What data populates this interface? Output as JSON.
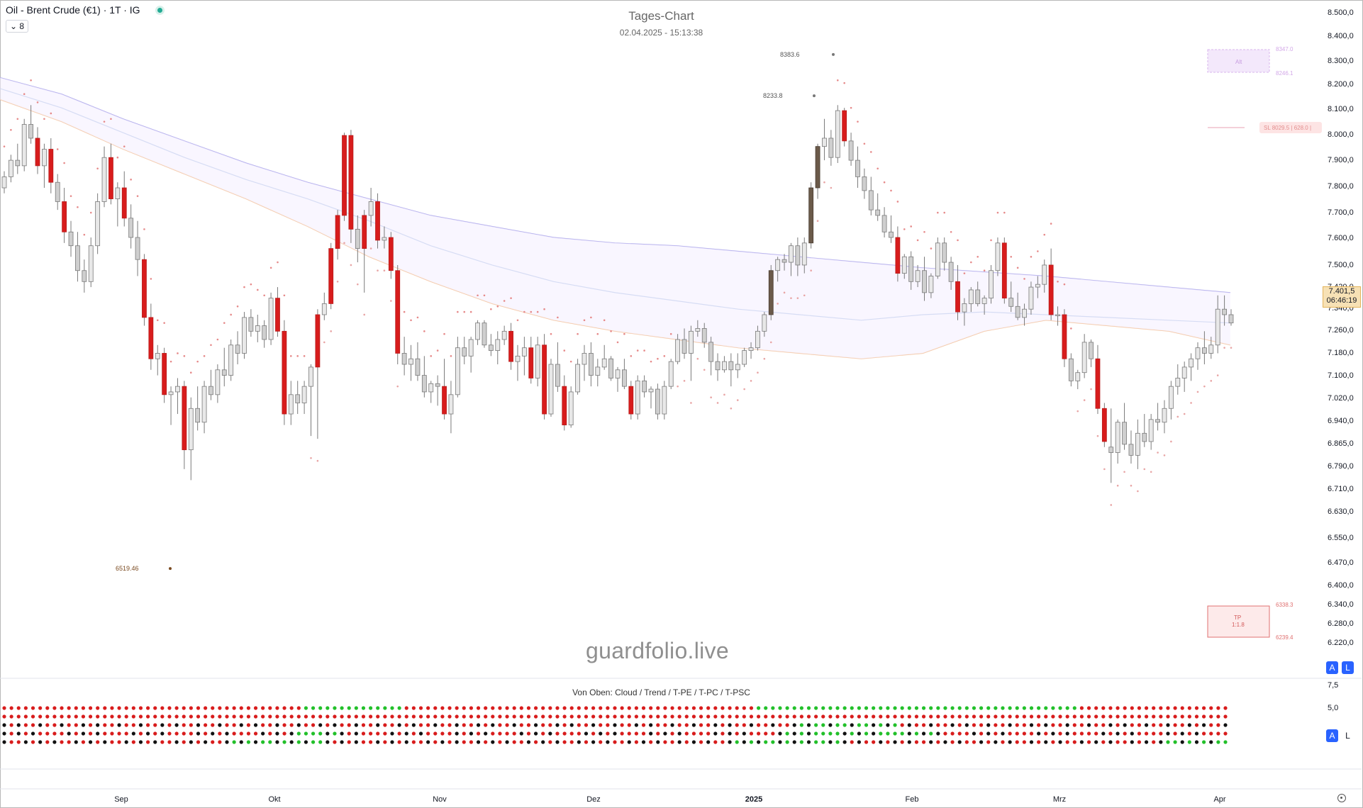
{
  "header": {
    "symbol": "Oil - Brent Crude (€1) · 1T · IG",
    "collapse_label": "8"
  },
  "chart_data": {
    "type": "candlestick",
    "title": "Tages-Chart",
    "subtitle": "02.04.2025 - 15:13:38",
    "watermark": "guardfolio.live",
    "y_axis_labels": [
      "8.500,0",
      "8.400,0",
      "8.300,0",
      "8.200,0",
      "8.100,0",
      "8.000,0",
      "7.900,0",
      "7.800,0",
      "7.700,0",
      "7.600,0",
      "7.500,0",
      "7.420,0",
      "7.340,0",
      "7.260,0",
      "7.180,0",
      "7.100,0",
      "7.020,0",
      "6.940,0",
      "6.865,0",
      "6.790,0",
      "6.710,0",
      "6.630,0",
      "6.550,0",
      "6.470,0",
      "6.400,0",
      "6.340,0",
      "6.280,0",
      "6.220,0"
    ],
    "y_range": [
      6160,
      8540
    ],
    "x_axis_labels": [
      "Sep",
      "Okt",
      "Nov",
      "Dez",
      "2025",
      "Feb",
      "Mrz",
      "Apr"
    ],
    "last_price": "7.401,5",
    "countdown": "06:46:19",
    "price_annotations": [
      {
        "text": "8383.6",
        "value": 8383.6
      },
      {
        "text": "8233.8",
        "value": 8233.8
      },
      {
        "text": "6519.46",
        "value": 6519.46
      }
    ],
    "right_labels": {
      "alt_box": "Alt",
      "alt_top": "8347.0",
      "alt_bottom": "8246.1",
      "sl": "SL 8029.5 | 628.0 |",
      "tp_box_line1": "TP",
      "tp_box_line2": "1:1.8",
      "tp_top": "6338.3",
      "tp_bottom": "6239.4"
    },
    "candles": [
      [
        7900,
        7960,
        7880,
        7940
      ],
      [
        7940,
        8020,
        7920,
        8000
      ],
      [
        8000,
        8060,
        7950,
        7980
      ],
      [
        7980,
        8150,
        7960,
        8130
      ],
      [
        8130,
        8200,
        8060,
        8080
      ],
      [
        8080,
        8120,
        7950,
        7980
      ],
      [
        7980,
        8060,
        7900,
        8040
      ],
      [
        8040,
        8080,
        7880,
        7920
      ],
      [
        7920,
        7950,
        7820,
        7850
      ],
      [
        7850,
        7900,
        7700,
        7740
      ],
      [
        7740,
        7780,
        7650,
        7690
      ],
      [
        7690,
        7740,
        7560,
        7600
      ],
      [
        7600,
        7640,
        7520,
        7560
      ],
      [
        7560,
        7720,
        7540,
        7690
      ],
      [
        7690,
        7880,
        7660,
        7850
      ],
      [
        7850,
        8050,
        7830,
        8010
      ],
      [
        8010,
        8060,
        7840,
        7860
      ],
      [
        7860,
        7920,
        7760,
        7900
      ],
      [
        7900,
        7960,
        7760,
        7790
      ],
      [
        7790,
        7840,
        7680,
        7720
      ],
      [
        7720,
        7780,
        7580,
        7640
      ],
      [
        7640,
        7660,
        7400,
        7430
      ],
      [
        7430,
        7480,
        7240,
        7280
      ],
      [
        7280,
        7330,
        7220,
        7300
      ],
      [
        7300,
        7320,
        7120,
        7150
      ],
      [
        7150,
        7180,
        7040,
        7160
      ],
      [
        7160,
        7210,
        7080,
        7180
      ],
      [
        7180,
        7200,
        6880,
        6950
      ],
      [
        6950,
        7140,
        6840,
        7100
      ],
      [
        7100,
        7180,
        7020,
        7050
      ],
      [
        7050,
        7200,
        7010,
        7180
      ],
      [
        7180,
        7240,
        7130,
        7150
      ],
      [
        7150,
        7260,
        7120,
        7240
      ],
      [
        7240,
        7320,
        7180,
        7220
      ],
      [
        7220,
        7350,
        7200,
        7330
      ],
      [
        7330,
        7380,
        7260,
        7300
      ],
      [
        7300,
        7450,
        7280,
        7430
      ],
      [
        7430,
        7460,
        7360,
        7380
      ],
      [
        7380,
        7440,
        7340,
        7400
      ],
      [
        7400,
        7420,
        7320,
        7350
      ],
      [
        7350,
        7520,
        7330,
        7500
      ],
      [
        7500,
        7540,
        7360,
        7380
      ],
      [
        7380,
        7420,
        7040,
        7080
      ],
      [
        7080,
        7200,
        7040,
        7150
      ],
      [
        7150,
        7200,
        7080,
        7120
      ],
      [
        7120,
        7200,
        7080,
        7180
      ],
      [
        7180,
        7260,
        7000,
        7250
      ],
      [
        7250,
        7460,
        6990,
        7440
      ],
      [
        7440,
        7520,
        7420,
        7480
      ],
      [
        7480,
        7700,
        7460,
        7680
      ],
      [
        7680,
        7820,
        7640,
        7800
      ],
      [
        7800,
        8100,
        7780,
        8090
      ],
      [
        8090,
        8110,
        7700,
        7750
      ],
      [
        7750,
        7800,
        7630,
        7680
      ],
      [
        7680,
        7820,
        7520,
        7800
      ],
      [
        7800,
        7900,
        7760,
        7850
      ],
      [
        7850,
        7880,
        7680,
        7710
      ],
      [
        7710,
        7760,
        7680,
        7720
      ],
      [
        7720,
        7740,
        7570,
        7600
      ],
      [
        7600,
        7620,
        7260,
        7300
      ],
      [
        7300,
        7360,
        7220,
        7260
      ],
      [
        7260,
        7330,
        7200,
        7280
      ],
      [
        7280,
        7340,
        7200,
        7220
      ],
      [
        7220,
        7290,
        7140,
        7160
      ],
      [
        7160,
        7200,
        7120,
        7190
      ],
      [
        7190,
        7220,
        7110,
        7180
      ],
      [
        7180,
        7280,
        7060,
        7080
      ],
      [
        7080,
        7200,
        7010,
        7150
      ],
      [
        7150,
        7360,
        7140,
        7320
      ],
      [
        7320,
        7360,
        7260,
        7290
      ],
      [
        7290,
        7360,
        7230,
        7350
      ],
      [
        7350,
        7420,
        7330,
        7410
      ],
      [
        7410,
        7420,
        7320,
        7330
      ],
      [
        7330,
        7370,
        7290,
        7310
      ],
      [
        7310,
        7380,
        7260,
        7350
      ],
      [
        7350,
        7400,
        7330,
        7380
      ],
      [
        7380,
        7410,
        7240,
        7270
      ],
      [
        7270,
        7330,
        7200,
        7290
      ],
      [
        7290,
        7360,
        7220,
        7320
      ],
      [
        7320,
        7360,
        7190,
        7210
      ],
      [
        7210,
        7360,
        7180,
        7330
      ],
      [
        7330,
        7370,
        7060,
        7080
      ],
      [
        7080,
        7280,
        7070,
        7260
      ],
      [
        7260,
        7340,
        7160,
        7180
      ],
      [
        7180,
        7220,
        7020,
        7040
      ],
      [
        7040,
        7180,
        7030,
        7160
      ],
      [
        7160,
        7280,
        7150,
        7260
      ],
      [
        7260,
        7330,
        7200,
        7300
      ],
      [
        7300,
        7340,
        7180,
        7220
      ],
      [
        7220,
        7280,
        7180,
        7250
      ],
      [
        7250,
        7330,
        7240,
        7280
      ],
      [
        7280,
        7290,
        7200,
        7210
      ],
      [
        7210,
        7250,
        7160,
        7240
      ],
      [
        7240,
        7280,
        7170,
        7180
      ],
      [
        7180,
        7200,
        7060,
        7080
      ],
      [
        7080,
        7220,
        7060,
        7200
      ],
      [
        7200,
        7220,
        7140,
        7160
      ],
      [
        7160,
        7180,
        7100,
        7170
      ],
      [
        7170,
        7190,
        7060,
        7080
      ],
      [
        7080,
        7200,
        7060,
        7180
      ],
      [
        7180,
        7280,
        7170,
        7270
      ],
      [
        7270,
        7370,
        7260,
        7350
      ],
      [
        7350,
        7390,
        7280,
        7300
      ],
      [
        7300,
        7400,
        7200,
        7380
      ],
      [
        7380,
        7420,
        7360,
        7390
      ],
      [
        7390,
        7410,
        7320,
        7340
      ],
      [
        7340,
        7360,
        7220,
        7270
      ],
      [
        7270,
        7300,
        7200,
        7240
      ],
      [
        7240,
        7290,
        7230,
        7270
      ],
      [
        7270,
        7300,
        7180,
        7240
      ],
      [
        7240,
        7300,
        7210,
        7260
      ],
      [
        7260,
        7320,
        7250,
        7310
      ],
      [
        7310,
        7340,
        7280,
        7320
      ],
      [
        7320,
        7400,
        7310,
        7380
      ],
      [
        7380,
        7450,
        7360,
        7440
      ],
      [
        7440,
        7620,
        7420,
        7600
      ],
      [
        7600,
        7650,
        7560,
        7640
      ],
      [
        7640,
        7660,
        7600,
        7630
      ],
      [
        7630,
        7700,
        7580,
        7690
      ],
      [
        7690,
        7720,
        7580,
        7620
      ],
      [
        7620,
        7720,
        7590,
        7700
      ],
      [
        7700,
        7920,
        7680,
        7900
      ],
      [
        7900,
        8060,
        7860,
        8050
      ],
      [
        8050,
        8150,
        8000,
        8080
      ],
      [
        8080,
        8110,
        7980,
        8010
      ],
      [
        8010,
        8200,
        7990,
        8180
      ],
      [
        8180,
        8190,
        8050,
        8070
      ],
      [
        8070,
        8100,
        7980,
        8000
      ],
      [
        8000,
        8050,
        7900,
        7940
      ],
      [
        7940,
        7970,
        7860,
        7890
      ],
      [
        7890,
        7940,
        7800,
        7820
      ],
      [
        7820,
        7880,
        7780,
        7800
      ],
      [
        7800,
        7830,
        7720,
        7740
      ],
      [
        7740,
        7800,
        7700,
        7720
      ],
      [
        7720,
        7760,
        7560,
        7590
      ],
      [
        7590,
        7660,
        7570,
        7650
      ],
      [
        7650,
        7670,
        7530,
        7560
      ],
      [
        7560,
        7620,
        7540,
        7600
      ],
      [
        7600,
        7650,
        7490,
        7520
      ],
      [
        7520,
        7590,
        7500,
        7580
      ],
      [
        7580,
        7720,
        7570,
        7700
      ],
      [
        7700,
        7720,
        7600,
        7630
      ],
      [
        7630,
        7650,
        7530,
        7560
      ],
      [
        7560,
        7620,
        7420,
        7450
      ],
      [
        7450,
        7500,
        7400,
        7480
      ],
      [
        7480,
        7540,
        7450,
        7530
      ],
      [
        7530,
        7560,
        7470,
        7480
      ],
      [
        7480,
        7510,
        7440,
        7500
      ],
      [
        7500,
        7620,
        7480,
        7600
      ],
      [
        7600,
        7720,
        7580,
        7700
      ],
      [
        7700,
        7720,
        7480,
        7500
      ],
      [
        7500,
        7560,
        7450,
        7470
      ],
      [
        7470,
        7520,
        7420,
        7430
      ],
      [
        7430,
        7480,
        7400,
        7460
      ],
      [
        7460,
        7560,
        7440,
        7540
      ],
      [
        7540,
        7580,
        7500,
        7550
      ],
      [
        7550,
        7640,
        7520,
        7620
      ],
      [
        7620,
        7680,
        7420,
        7440
      ],
      [
        7440,
        7470,
        7400,
        7440
      ],
      [
        7440,
        7460,
        7250,
        7280
      ],
      [
        7280,
        7300,
        7180,
        7200
      ],
      [
        7200,
        7240,
        7170,
        7230
      ],
      [
        7230,
        7370,
        7210,
        7340
      ],
      [
        7340,
        7350,
        7250,
        7280
      ],
      [
        7280,
        7330,
        7080,
        7100
      ],
      [
        7100,
        7120,
        6960,
        6980
      ],
      [
        6960,
        7100,
        6830,
        6940
      ],
      [
        6940,
        7060,
        6900,
        7050
      ],
      [
        7050,
        7120,
        6950,
        6970
      ],
      [
        6970,
        7020,
        6900,
        6930
      ],
      [
        6930,
        7060,
        6880,
        7010
      ],
      [
        7010,
        7080,
        6960,
        6980
      ],
      [
        6980,
        7080,
        6950,
        7060
      ],
      [
        7060,
        7120,
        7020,
        7050
      ],
      [
        7050,
        7130,
        7010,
        7100
      ],
      [
        7100,
        7200,
        7060,
        7180
      ],
      [
        7180,
        7260,
        7150,
        7210
      ],
      [
        7210,
        7270,
        7160,
        7250
      ],
      [
        7250,
        7300,
        7200,
        7280
      ],
      [
        7280,
        7340,
        7240,
        7320
      ],
      [
        7320,
        7380,
        7260,
        7300
      ],
      [
        7300,
        7360,
        7280,
        7330
      ],
      [
        7330,
        7510,
        7300,
        7460
      ],
      [
        7460,
        7510,
        7400,
        7440
      ],
      [
        7440,
        7460,
        7400,
        7410
      ]
    ],
    "series_lines": [
      {
        "color": "#9b95e6",
        "values": [
          8300,
          8240,
          8150,
          8070,
          7990,
          7920,
          7860,
          7800,
          7760,
          7720,
          7700,
          7690,
          7670,
          7650,
          7630,
          7610,
          7595,
          7580,
          7560,
          7540,
          7520
        ]
      },
      {
        "color": "#9fb8e0",
        "values": [
          8260,
          8190,
          8100,
          8010,
          7930,
          7860,
          7780,
          7690,
          7620,
          7560,
          7520,
          7490,
          7460,
          7440,
          7420,
          7440,
          7450,
          7440,
          7430,
          7420,
          7410
        ]
      },
      {
        "color": "#f3b98a",
        "values": [
          8220,
          8140,
          8040,
          7950,
          7860,
          7760,
          7650,
          7560,
          7480,
          7420,
          7380,
          7350,
          7320,
          7300,
          7280,
          7300,
          7380,
          7420,
          7400,
          7380,
          7330
        ]
      }
    ],
    "indicator": {
      "title": "Von Oben: Cloud / Trend / T-PE / T-PC / T-PSC",
      "y_axis_labels": [
        "7,5",
        "5,0"
      ],
      "rows": 5
    }
  }
}
